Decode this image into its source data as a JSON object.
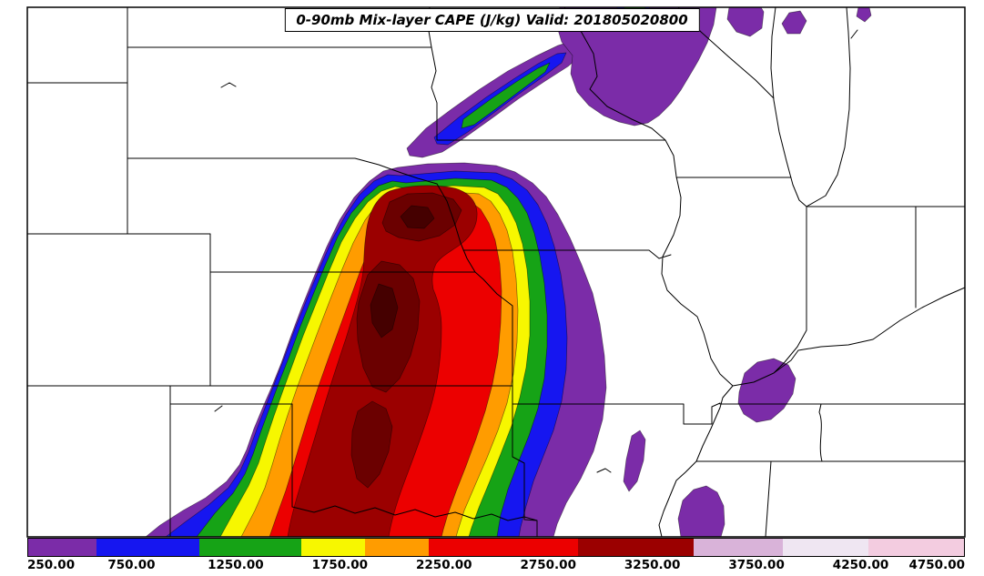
{
  "title": "0-90mb Mix-layer CAPE (J/kg) Valid: 201805020800",
  "colorbar": {
    "ticks": [
      "250.00",
      "750.00",
      "1250.00",
      "1750.00",
      "2250.00",
      "2750.00",
      "3250.00",
      "3750.00",
      "4250.00",
      "4750.00"
    ],
    "segments": [
      {
        "color": "#7B2CA8",
        "width": 7.3
      },
      {
        "color": "#1616F0",
        "width": 11.0
      },
      {
        "color": "#16A316",
        "width": 10.9
      },
      {
        "color": "#F7F700",
        "width": 6.8
      },
      {
        "color": "#FF9C00",
        "width": 6.8
      },
      {
        "color": "#EC0000",
        "width": 16.0
      },
      {
        "color": "#9B0000",
        "width": 12.3
      },
      {
        "color": "#D9B3D9",
        "width": 9.5
      },
      {
        "color": "#EFE6F2",
        "width": 9.2
      },
      {
        "color": "#F3CCE0",
        "width": 10.2
      }
    ]
  },
  "chart_data": {
    "type": "heatmap",
    "title": "0-90mb Mix-layer CAPE (J/kg) Valid: 201805020800",
    "field": "0-90mb Mix-layer CAPE",
    "units": "J/kg",
    "valid_time": "201805020800",
    "colorbar_ticks": [
      250,
      750,
      1250,
      1750,
      2250,
      2750,
      3250,
      3750,
      4250,
      4750
    ],
    "palette": [
      "#7B2CA8",
      "#1616F0",
      "#16A316",
      "#F7F700",
      "#FF9C00",
      "#EC0000",
      "#9B0000",
      "#D9B3D9",
      "#EFE6F2",
      "#F3CCE0"
    ],
    "description": "Filled CAPE contours over central US map: maximum axis (dark red, >2750 J/kg) from central Nebraska through western Kansas and Oklahoma into north Texas, ringed by red, orange, yellow, green, blue and purple bands; scattered low-CAPE purple areas over Minnesota, Wisconsin, Missouri, western Kentucky and the lower Mississippi valley."
  }
}
